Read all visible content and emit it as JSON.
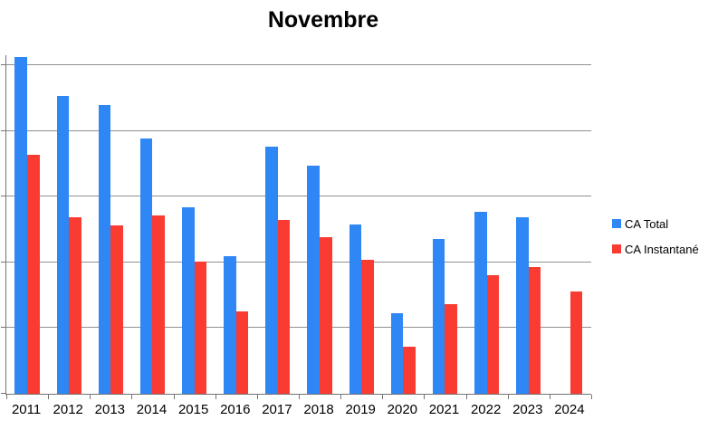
{
  "chart_data": {
    "type": "bar",
    "title": "Novembre",
    "categories": [
      "2011",
      "2012",
      "2013",
      "2014",
      "2015",
      "2016",
      "2017",
      "2018",
      "2019",
      "2020",
      "2021",
      "2022",
      "2023",
      "2024"
    ],
    "series": [
      {
        "name": "CA Total",
        "color": "#2F86F5",
        "values": [
          5.12,
          4.53,
          4.39,
          3.89,
          2.83,
          2.09,
          3.76,
          3.47,
          2.57,
          1.23,
          2.36,
          2.77,
          2.68,
          null
        ]
      },
      {
        "name": "CA Instantané",
        "color": "#F93B31",
        "values": [
          3.63,
          2.68,
          2.56,
          2.71,
          2.01,
          1.25,
          2.65,
          2.38,
          2.04,
          0.71,
          1.36,
          1.81,
          1.93,
          1.55
        ]
      }
    ],
    "xlabel": "",
    "ylabel": "",
    "ylim": [
      0,
      5.15
    ],
    "y_major_unit": 1,
    "y_axis_tick_labels": "hidden (cropped off left edge of screenshot)",
    "unit": "gridline-intervals (no numeric y labels visible)",
    "grid": "horizontal",
    "legend_position": "right"
  },
  "colors": {
    "background": "#FFFFFF",
    "gridline": "#8F8F8F",
    "axis": "#737373",
    "text": "#000000"
  }
}
